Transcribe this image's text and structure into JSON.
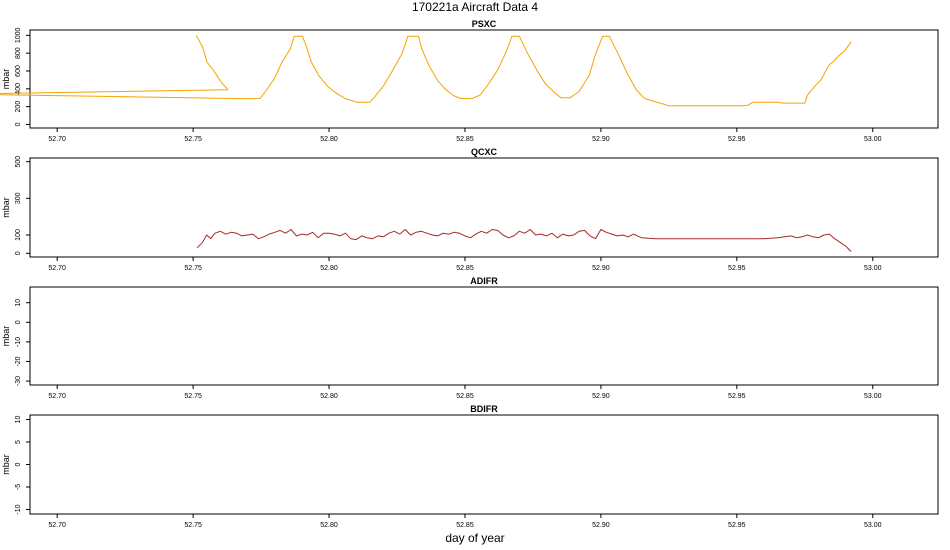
{
  "figure": {
    "title": "170221a   Aircraft Data 4",
    "xlabel": "day of year"
  },
  "chart_data": [
    {
      "type": "line",
      "title": "PSXC",
      "ylabel": "mbar",
      "xlim": [
        52.69,
        53.024
      ],
      "ylim": [
        -40,
        1060
      ],
      "x_ticks": [
        52.7,
        52.75,
        52.8,
        52.85,
        52.9,
        52.95,
        53.0
      ],
      "x_tick_labels": [
        "52.70",
        "52.75",
        "52.80",
        "52.85",
        "52.90",
        "52.95",
        "53.00"
      ],
      "y_ticks": [
        0,
        200,
        400,
        600,
        800,
        1000
      ],
      "y_tick_labels": [
        "0",
        "200",
        "400",
        "600",
        "800",
        "1000"
      ],
      "grid": false,
      "color": "#f5a300",
      "series": [
        {
          "x": [
            52.7512,
            52.7536,
            52.7551,
            52.7577,
            52.7602,
            52.7628,
            52.6654,
            52.7682,
            52.7746,
            52.7766,
            52.78,
            52.7827,
            52.7858,
            52.7872,
            52.7902,
            52.7916,
            52.7935,
            52.7962,
            52.7994,
            52.8027,
            52.806,
            52.8103,
            52.815,
            52.8168,
            52.82,
            52.8231,
            52.8269,
            52.829,
            52.8329,
            52.8341,
            52.8369,
            52.84,
            52.843,
            52.846,
            52.8486,
            52.8527,
            52.8556,
            52.8586,
            52.8622,
            52.8652,
            52.8673,
            52.87,
            52.873,
            52.8766,
            52.8797,
            52.8836,
            52.8853,
            52.8887,
            52.892,
            52.8957,
            52.898,
            52.9007,
            52.9031,
            52.9062,
            52.9096,
            52.913,
            52.9161,
            52.925,
            52.94,
            52.952,
            52.954,
            52.956,
            52.965,
            52.967,
            52.975,
            52.976,
            52.979,
            52.981,
            52.9827,
            52.984,
            52.9853,
            52.9875,
            52.9895,
            52.9921
          ],
          "y": [
            1000,
            860,
            700,
            600,
            480,
            390,
            340,
            290,
            290,
            370,
            520,
            700,
            850,
            990,
            990,
            880,
            700,
            550,
            430,
            350,
            290,
            250,
            250,
            310,
            430,
            590,
            800,
            990,
            990,
            850,
            650,
            490,
            390,
            320,
            290,
            290,
            330,
            450,
            620,
            820,
            990,
            990,
            800,
            600,
            450,
            340,
            300,
            300,
            370,
            550,
            790,
            990,
            990,
            800,
            580,
            390,
            290,
            210,
            210,
            210,
            215,
            250,
            250,
            240,
            240,
            330,
            440,
            500,
            600,
            670,
            700,
            770,
            820,
            930
          ]
        }
      ]
    },
    {
      "type": "line",
      "title": "QCXC",
      "ylabel": "mbar",
      "xlim": [
        52.69,
        53.024
      ],
      "ylim": [
        -20,
        520
      ],
      "x_ticks": [
        52.7,
        52.75,
        52.8,
        52.85,
        52.9,
        52.95,
        53.0
      ],
      "x_tick_labels": [
        "52.70",
        "52.75",
        "52.80",
        "52.85",
        "52.90",
        "52.95",
        "53.00"
      ],
      "y_ticks": [
        0,
        100,
        300,
        500
      ],
      "y_tick_labels": [
        "0",
        "100",
        "300",
        "500"
      ],
      "grid": false,
      "color": "#a52a2a",
      "series": [
        {
          "x": [
            52.7515,
            52.7535,
            52.755,
            52.7565,
            52.758,
            52.76,
            52.762,
            52.764,
            52.766,
            52.768,
            52.77,
            52.772,
            52.774,
            52.776,
            52.778,
            52.78,
            52.782,
            52.784,
            52.786,
            52.788,
            52.79,
            52.792,
            52.794,
            52.796,
            52.798,
            52.8,
            52.802,
            52.804,
            52.806,
            52.808,
            52.81,
            52.812,
            52.814,
            52.816,
            52.818,
            52.82,
            52.822,
            52.824,
            52.826,
            52.828,
            52.83,
            52.832,
            52.834,
            52.836,
            52.838,
            52.84,
            52.842,
            52.844,
            52.846,
            52.848,
            52.85,
            52.852,
            52.854,
            52.856,
            52.858,
            52.86,
            52.862,
            52.864,
            52.866,
            52.868,
            52.87,
            52.872,
            52.874,
            52.876,
            52.878,
            52.88,
            52.882,
            52.884,
            52.886,
            52.888,
            52.89,
            52.892,
            52.894,
            52.896,
            52.898,
            52.9,
            52.902,
            52.904,
            52.906,
            52.908,
            52.91,
            52.912,
            52.915,
            52.92,
            52.93,
            52.94,
            52.95,
            52.955,
            52.96,
            52.965,
            52.97,
            52.972,
            52.974,
            52.976,
            52.978,
            52.98,
            52.982,
            52.984,
            52.986,
            52.988,
            52.99,
            52.992
          ],
          "y": [
            30,
            60,
            100,
            80,
            110,
            120,
            105,
            115,
            110,
            95,
            100,
            105,
            80,
            90,
            105,
            115,
            125,
            110,
            130,
            95,
            105,
            100,
            115,
            85,
            110,
            110,
            105,
            95,
            110,
            80,
            75,
            95,
            85,
            80,
            95,
            90,
            110,
            120,
            105,
            130,
            100,
            115,
            120,
            110,
            100,
            95,
            110,
            105,
            115,
            110,
            95,
            85,
            105,
            120,
            110,
            130,
            125,
            100,
            85,
            95,
            120,
            110,
            130,
            100,
            105,
            95,
            110,
            85,
            105,
            95,
            100,
            120,
            125,
            95,
            80,
            130,
            115,
            105,
            95,
            100,
            90,
            105,
            85,
            80,
            80,
            80,
            80,
            80,
            80,
            85,
            95,
            85,
            90,
            100,
            90,
            85,
            100,
            105,
            80,
            60,
            40,
            10
          ]
        }
      ]
    },
    {
      "type": "line",
      "title": "ADIFR",
      "ylabel": "mbar",
      "xlim": [
        52.69,
        53.024
      ],
      "ylim": [
        -32,
        18
      ],
      "x_ticks": [
        52.7,
        52.75,
        52.8,
        52.85,
        52.9,
        52.95,
        53.0
      ],
      "x_tick_labels": [
        "52.70",
        "52.75",
        "52.80",
        "52.85",
        "52.90",
        "52.95",
        "53.00"
      ],
      "y_ticks": [
        -30,
        -20,
        -10,
        0,
        10
      ],
      "y_tick_labels": [
        "-30",
        "-20",
        "-10",
        "0",
        "10"
      ],
      "grid": false,
      "series": []
    },
    {
      "type": "line",
      "title": "BDIFR",
      "ylabel": "mbar",
      "xlim": [
        52.69,
        53.024
      ],
      "ylim": [
        -11,
        11
      ],
      "x_ticks": [
        52.7,
        52.75,
        52.8,
        52.85,
        52.9,
        52.95,
        53.0
      ],
      "x_tick_labels": [
        "52.70",
        "52.75",
        "52.80",
        "52.85",
        "52.90",
        "52.95",
        "53.00"
      ],
      "y_ticks": [
        -10,
        -5,
        0,
        5,
        10
      ],
      "y_tick_labels": [
        "-10",
        "-5",
        "0",
        "5",
        "10"
      ],
      "grid": false,
      "series": []
    }
  ]
}
